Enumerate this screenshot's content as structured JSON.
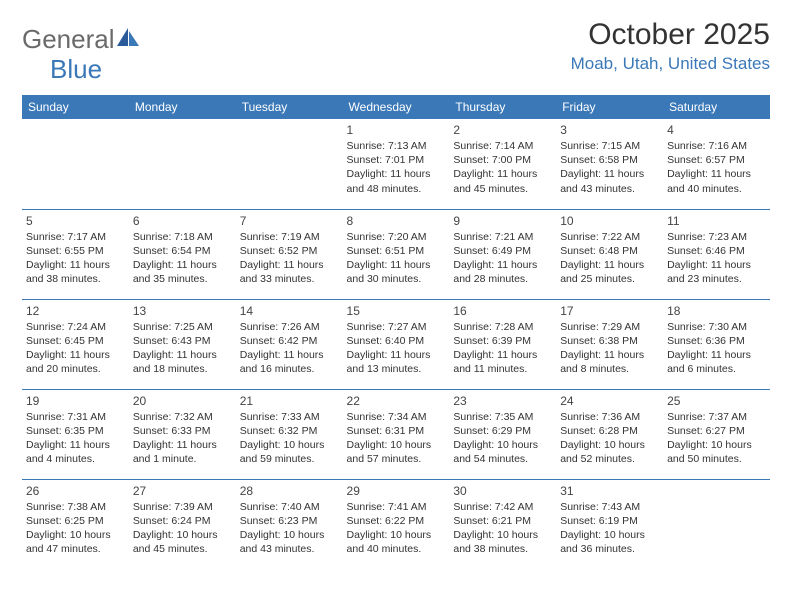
{
  "logo": {
    "text1": "General",
    "text2": "Blue"
  },
  "title": "October 2025",
  "location": "Moab, Utah, United States",
  "header_bg": "#3b78b8",
  "header_fg": "#ffffff",
  "border_color": "#3b78b8",
  "day_headers": [
    "Sunday",
    "Monday",
    "Tuesday",
    "Wednesday",
    "Thursday",
    "Friday",
    "Saturday"
  ],
  "weeks": [
    [
      null,
      null,
      null,
      {
        "n": "1",
        "sr": "7:13 AM",
        "ss": "7:01 PM",
        "dl": "11 hours and 48 minutes."
      },
      {
        "n": "2",
        "sr": "7:14 AM",
        "ss": "7:00 PM",
        "dl": "11 hours and 45 minutes."
      },
      {
        "n": "3",
        "sr": "7:15 AM",
        "ss": "6:58 PM",
        "dl": "11 hours and 43 minutes."
      },
      {
        "n": "4",
        "sr": "7:16 AM",
        "ss": "6:57 PM",
        "dl": "11 hours and 40 minutes."
      }
    ],
    [
      {
        "n": "5",
        "sr": "7:17 AM",
        "ss": "6:55 PM",
        "dl": "11 hours and 38 minutes."
      },
      {
        "n": "6",
        "sr": "7:18 AM",
        "ss": "6:54 PM",
        "dl": "11 hours and 35 minutes."
      },
      {
        "n": "7",
        "sr": "7:19 AM",
        "ss": "6:52 PM",
        "dl": "11 hours and 33 minutes."
      },
      {
        "n": "8",
        "sr": "7:20 AM",
        "ss": "6:51 PM",
        "dl": "11 hours and 30 minutes."
      },
      {
        "n": "9",
        "sr": "7:21 AM",
        "ss": "6:49 PM",
        "dl": "11 hours and 28 minutes."
      },
      {
        "n": "10",
        "sr": "7:22 AM",
        "ss": "6:48 PM",
        "dl": "11 hours and 25 minutes."
      },
      {
        "n": "11",
        "sr": "7:23 AM",
        "ss": "6:46 PM",
        "dl": "11 hours and 23 minutes."
      }
    ],
    [
      {
        "n": "12",
        "sr": "7:24 AM",
        "ss": "6:45 PM",
        "dl": "11 hours and 20 minutes."
      },
      {
        "n": "13",
        "sr": "7:25 AM",
        "ss": "6:43 PM",
        "dl": "11 hours and 18 minutes."
      },
      {
        "n": "14",
        "sr": "7:26 AM",
        "ss": "6:42 PM",
        "dl": "11 hours and 16 minutes."
      },
      {
        "n": "15",
        "sr": "7:27 AM",
        "ss": "6:40 PM",
        "dl": "11 hours and 13 minutes."
      },
      {
        "n": "16",
        "sr": "7:28 AM",
        "ss": "6:39 PM",
        "dl": "11 hours and 11 minutes."
      },
      {
        "n": "17",
        "sr": "7:29 AM",
        "ss": "6:38 PM",
        "dl": "11 hours and 8 minutes."
      },
      {
        "n": "18",
        "sr": "7:30 AM",
        "ss": "6:36 PM",
        "dl": "11 hours and 6 minutes."
      }
    ],
    [
      {
        "n": "19",
        "sr": "7:31 AM",
        "ss": "6:35 PM",
        "dl": "11 hours and 4 minutes."
      },
      {
        "n": "20",
        "sr": "7:32 AM",
        "ss": "6:33 PM",
        "dl": "11 hours and 1 minute."
      },
      {
        "n": "21",
        "sr": "7:33 AM",
        "ss": "6:32 PM",
        "dl": "10 hours and 59 minutes."
      },
      {
        "n": "22",
        "sr": "7:34 AM",
        "ss": "6:31 PM",
        "dl": "10 hours and 57 minutes."
      },
      {
        "n": "23",
        "sr": "7:35 AM",
        "ss": "6:29 PM",
        "dl": "10 hours and 54 minutes."
      },
      {
        "n": "24",
        "sr": "7:36 AM",
        "ss": "6:28 PM",
        "dl": "10 hours and 52 minutes."
      },
      {
        "n": "25",
        "sr": "7:37 AM",
        "ss": "6:27 PM",
        "dl": "10 hours and 50 minutes."
      }
    ],
    [
      {
        "n": "26",
        "sr": "7:38 AM",
        "ss": "6:25 PM",
        "dl": "10 hours and 47 minutes."
      },
      {
        "n": "27",
        "sr": "7:39 AM",
        "ss": "6:24 PM",
        "dl": "10 hours and 45 minutes."
      },
      {
        "n": "28",
        "sr": "7:40 AM",
        "ss": "6:23 PM",
        "dl": "10 hours and 43 minutes."
      },
      {
        "n": "29",
        "sr": "7:41 AM",
        "ss": "6:22 PM",
        "dl": "10 hours and 40 minutes."
      },
      {
        "n": "30",
        "sr": "7:42 AM",
        "ss": "6:21 PM",
        "dl": "10 hours and 38 minutes."
      },
      {
        "n": "31",
        "sr": "7:43 AM",
        "ss": "6:19 PM",
        "dl": "10 hours and 36 minutes."
      },
      null
    ]
  ],
  "labels": {
    "sunrise": "Sunrise:",
    "sunset": "Sunset:",
    "daylight": "Daylight:"
  }
}
